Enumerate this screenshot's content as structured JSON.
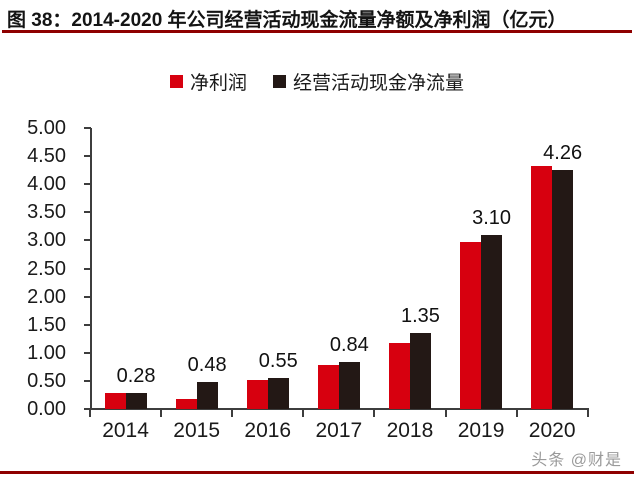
{
  "page": {
    "title": "图 38：2014-2020 年公司经营活动现金流量净额及净利润（亿元）",
    "watermark": "头条 @财是"
  },
  "colors": {
    "series_red": "#d7000f",
    "series_black": "#231815",
    "rule_dark_red": "#8e0000",
    "axis_gray": "#3d3d3d",
    "watermark_gray": "#9a9a9a"
  },
  "chart_data": {
    "type": "bar",
    "title": "图 38：2014-2020 年公司经营活动现金流量净额及净利润（亿元）",
    "categories": [
      "2014",
      "2015",
      "2016",
      "2017",
      "2018",
      "2019",
      "2020"
    ],
    "series": [
      {
        "name": "净利润",
        "color": "#d7000f",
        "values": [
          0.29,
          0.18,
          0.52,
          0.78,
          1.17,
          2.97,
          4.33
        ]
      },
      {
        "name": "经营活动现金净流量",
        "color": "#231815",
        "values": [
          0.28,
          0.48,
          0.55,
          0.84,
          1.35,
          3.1,
          4.26
        ]
      }
    ],
    "data_labels": {
      "labeled_series": "经营活动现金净流量",
      "values": [
        "0.28",
        "0.48",
        "0.55",
        "0.84",
        "1.35",
        "3.10",
        "4.26"
      ]
    },
    "ylim": [
      0,
      5
    ],
    "ytick_step": 0.5,
    "yticks": [
      "5.00",
      "4.50",
      "4.00",
      "3.50",
      "3.00",
      "2.50",
      "2.00",
      "1.50",
      "1.00",
      "0.50",
      "0.00"
    ],
    "xlabel": "",
    "ylabel": "",
    "grid": false,
    "legend_position": "top-center"
  }
}
